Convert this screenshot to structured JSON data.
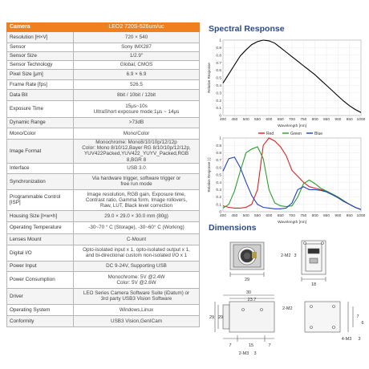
{
  "table": {
    "header": {
      "label": "Camera",
      "value": "LEO2 720S-526um/uc"
    },
    "rows": [
      {
        "label": "Resolution [H×V]",
        "value": "720 × 540"
      },
      {
        "label": "Sensor",
        "value": "Sony IMX287"
      },
      {
        "label": "Sensor Size",
        "value": "1/2.9\""
      },
      {
        "label": "Sensor Technology",
        "value": "Global, CMOS"
      },
      {
        "label": "Pixel Size [μm]",
        "value": "6.9 × 6.9"
      },
      {
        "label": "Frame Rate [fps]",
        "value": "526.5"
      },
      {
        "label": "Data Bit",
        "value": "8bit / 10bit / 12bit"
      },
      {
        "label": "Exposure Time",
        "value": "15μs~10s\nUltraShort exposure mode:1μs ~ 14μs"
      },
      {
        "label": "Dynamic Range",
        "value": ">73dB"
      },
      {
        "label": "Mono/Color",
        "value": "Mono/Color"
      },
      {
        "label": "Image Format",
        "value": "Monochrome:   Mono8/10/10p/12/12p\nColor:  Mono 8/10/12,Bayer RG 8/10/10p/12/12p,\nYUV422Packed,YUV422_YUYV_Packed,RGB 8,BGR 8"
      },
      {
        "label": "Interface",
        "value": "USB 3.0"
      },
      {
        "label": "Synchronization",
        "value": "Via hardware trigger,  software trigger or\nfree run mode"
      },
      {
        "label": "Programmable Control\n[ISP]",
        "value": "Image resolution,  RGB gain,  Exposure time,\nContrast ratio,  Gamma form,  Image rollovers,\nRaw,  LUT,  Black level correction"
      },
      {
        "label": "Housing Size [l×w×h]",
        "value": "29.0 × 29.0 × 30.0 mm (80g)"
      },
      {
        "label": "Operating Temperature",
        "value": "-30~70 ° C (Storage),  -30~60° C (Working)"
      },
      {
        "label": "Lenses Mount",
        "value": "C-Mount"
      },
      {
        "label": "Digital I/O",
        "value": "Opto-isolated input x 1,  opto-isolated output x 1,\nand bi-directional custom non-isolated I/O x 1"
      },
      {
        "label": "Power Input",
        "value": "DC 9-24V, Supporting USB"
      },
      {
        "label": "Power Consumption",
        "value": "Monochrome:   5V @2.4W\nColor:   5V @2.6W"
      },
      {
        "label": "Driver",
        "value": "LEO Series Camera Software Suite (iDatum) or\n3rd party USB3 Vision Software"
      },
      {
        "label": "Operating System",
        "value": "Windows,Linux"
      },
      {
        "label": "Conformity",
        "value": "USB3 Vision,GenICam"
      }
    ]
  },
  "spectral": {
    "title": "Spectral Response",
    "xlabel": "Wavelength [nm]",
    "mono_ylabel": "Relative Response",
    "color_ylabel": "Relative Response [-]"
  },
  "dimensions": {
    "title": "Dimensions",
    "labels": {
      "front_w": "29",
      "side_w": "18",
      "m2_top": "2-M2",
      "thread_top": "3",
      "side_total": "30",
      "side_mid": "23.7",
      "side_h": "29",
      "side_h_outer": "29",
      "b_left": "7",
      "b_mid": "15",
      "b_right": "7",
      "m3_bottom": "2-M3",
      "thread_bottom": "3",
      "m2_side": "2-M2",
      "m3_right": "4-M3",
      "thread_right": "3",
      "right_dim1": "7",
      "right_dim2": "6"
    }
  },
  "chart_data": [
    {
      "type": "line",
      "title": "",
      "xlabel": "Wavelength [nm]",
      "ylabel": "Relative Response",
      "xlim": [
        400,
        1000
      ],
      "ylim": [
        0,
        1
      ],
      "x": [
        400,
        425,
        450,
        475,
        500,
        525,
        550,
        575,
        600,
        625,
        650,
        675,
        700,
        725,
        750,
        775,
        800,
        825,
        850,
        875,
        900,
        925,
        950,
        975,
        1000
      ],
      "series": [
        {
          "name": "",
          "color": "#000000",
          "values": [
            0.43,
            0.55,
            0.67,
            0.79,
            0.87,
            0.94,
            0.98,
            1.0,
            0.99,
            0.96,
            0.9,
            0.84,
            0.78,
            0.72,
            0.66,
            0.6,
            0.54,
            0.47,
            0.4,
            0.33,
            0.26,
            0.19,
            0.13,
            0.08,
            0.04
          ]
        }
      ]
    },
    {
      "type": "line",
      "title": "",
      "xlabel": "Wavelength [nm]",
      "ylabel": "Relative Response [-]",
      "xlim": [
        400,
        1000
      ],
      "ylim": [
        0,
        1
      ],
      "legend": "top",
      "x": [
        400,
        425,
        450,
        475,
        500,
        525,
        550,
        575,
        600,
        625,
        650,
        675,
        700,
        725,
        750,
        775,
        800,
        825,
        850,
        875,
        900,
        925,
        950,
        975,
        1000
      ],
      "series": [
        {
          "name": "Red",
          "color": "#e02020",
          "values": [
            0.08,
            0.06,
            0.05,
            0.05,
            0.06,
            0.1,
            0.3,
            0.9,
            1.0,
            0.96,
            0.88,
            0.76,
            0.56,
            0.48,
            0.4,
            0.34,
            0.32,
            0.3,
            0.28,
            0.24,
            0.2,
            0.15,
            0.1,
            0.06,
            0.03
          ]
        },
        {
          "name": "Green",
          "color": "#2aa02a",
          "values": [
            0.05,
            0.1,
            0.28,
            0.55,
            0.8,
            0.85,
            0.88,
            0.72,
            0.3,
            0.12,
            0.08,
            0.07,
            0.08,
            0.2,
            0.38,
            0.43,
            0.38,
            0.32,
            0.28,
            0.24,
            0.2,
            0.15,
            0.1,
            0.06,
            0.03
          ]
        },
        {
          "name": "Blue",
          "color": "#2040c0",
          "values": [
            0.55,
            0.72,
            0.74,
            0.6,
            0.4,
            0.22,
            0.1,
            0.06,
            0.05,
            0.04,
            0.04,
            0.05,
            0.12,
            0.3,
            0.34,
            0.3,
            0.3,
            0.29,
            0.27,
            0.23,
            0.19,
            0.14,
            0.1,
            0.06,
            0.03
          ]
        }
      ]
    }
  ]
}
